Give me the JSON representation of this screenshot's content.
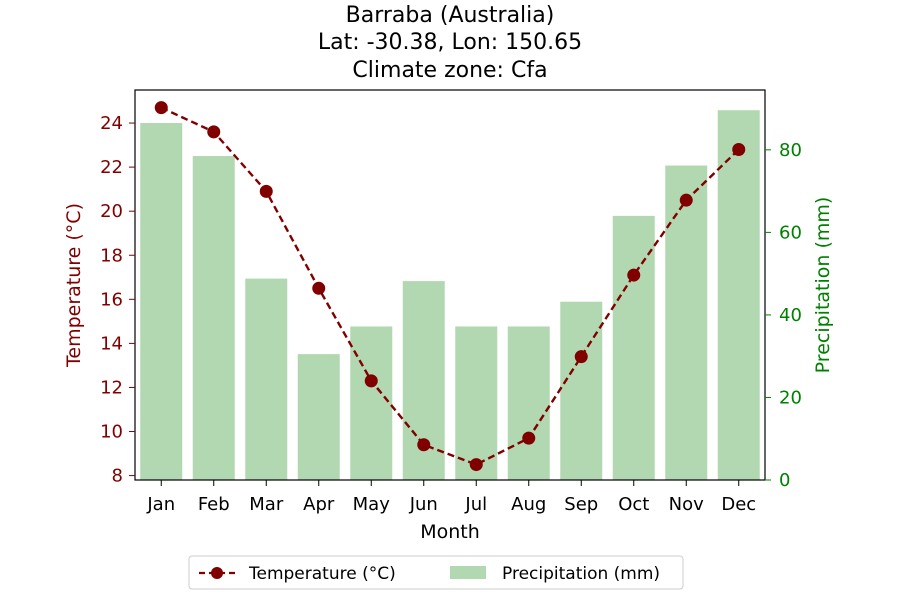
{
  "chart_data": {
    "type": "bar+line",
    "title_lines": [
      "Barraba (Australia)",
      "Lat: -30.38, Lon: 150.65",
      "Climate zone: Cfa"
    ],
    "categories": [
      "Jan",
      "Feb",
      "Mar",
      "Apr",
      "May",
      "Jun",
      "Jul",
      "Aug",
      "Sep",
      "Oct",
      "Nov",
      "Dec"
    ],
    "xlabel": "Month",
    "temperature": {
      "name": "Temperature (°C)",
      "ylabel": "Temperature (°C)",
      "ylim": [
        7.8,
        25.5
      ],
      "ticks": [
        8,
        10,
        12,
        14,
        16,
        18,
        20,
        22,
        24
      ],
      "values": [
        24.7,
        23.6,
        20.9,
        16.5,
        12.3,
        9.4,
        8.5,
        9.7,
        13.4,
        17.1,
        20.5,
        22.8
      ],
      "color": "#800000"
    },
    "precipitation": {
      "name": "Precipitation (mm)",
      "ylabel": "Precipitation (mm)",
      "ylim": [
        0,
        94.5
      ],
      "ticks": [
        0,
        20,
        40,
        60,
        80
      ],
      "values": [
        86.5,
        78.5,
        48.8,
        30.5,
        37.2,
        48.2,
        37.2,
        37.2,
        43.2,
        64.0,
        76.2,
        89.6
      ],
      "color": "#b2d8b2"
    },
    "legend_position": "bottom-center"
  }
}
